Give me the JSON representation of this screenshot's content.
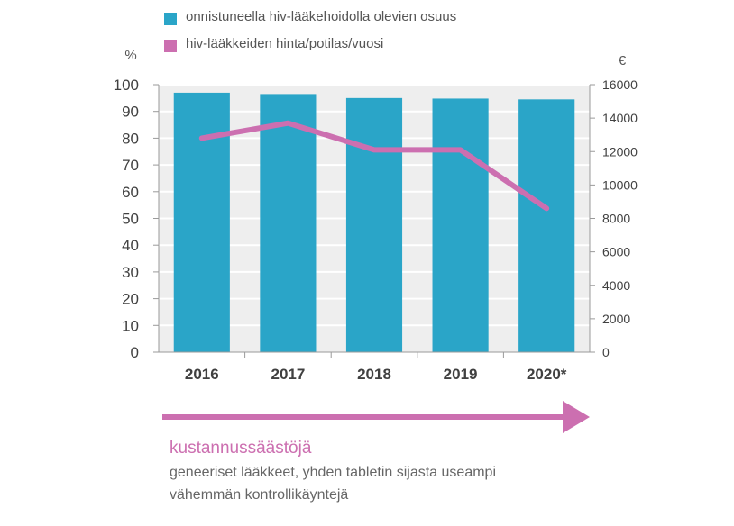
{
  "legend": {
    "bar_label": "onnistuneella hiv-lääkehoidolla olevien osuus",
    "line_label": "hiv-lääkkeiden hinta/potilas/vuosi"
  },
  "caption": {
    "title": "kustannussäästöjä",
    "line1": "geneeriset lääkkeet, yhden tabletin sijasta useampi",
    "line2": "vähemmän kontrollikäyntejä"
  },
  "chart_data": {
    "type": "bar",
    "categories": [
      "2016",
      "2017",
      "2018",
      "2019",
      "2020*"
    ],
    "left_axis": {
      "unit": "%",
      "ylim": [
        0,
        100
      ],
      "ticks": [
        0,
        10,
        20,
        30,
        40,
        50,
        60,
        70,
        80,
        90,
        100
      ]
    },
    "right_axis": {
      "unit": "€",
      "ylim": [
        0,
        16000
      ],
      "ticks": [
        0,
        2000,
        4000,
        6000,
        8000,
        10000,
        12000,
        14000,
        16000
      ]
    },
    "series": [
      {
        "name": "onnistuneella hiv-lääkehoidolla olevien osuus",
        "type": "bar",
        "axis": "left",
        "color": "#2aa5c8",
        "values": [
          97,
          96.5,
          95,
          94.8,
          94.5
        ]
      },
      {
        "name": "hiv-lääkkeiden hinta/potilas/vuosi",
        "type": "line",
        "axis": "right",
        "color": "#cc6fb0",
        "values": [
          12800,
          13700,
          12100,
          12100,
          8600
        ]
      }
    ],
    "grid": true,
    "arrow_color": "#cc6fb0"
  }
}
